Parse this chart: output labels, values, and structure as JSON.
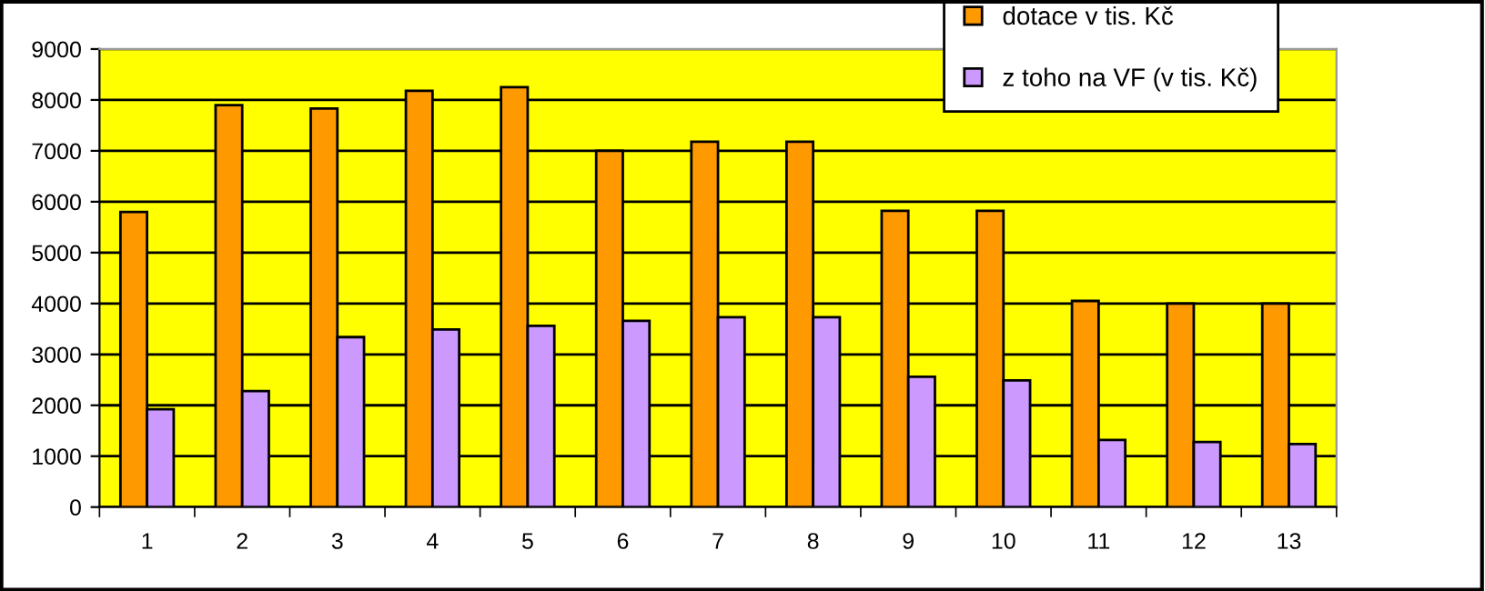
{
  "chart_data": {
    "type": "bar",
    "categories": [
      "1",
      "2",
      "3",
      "4",
      "5",
      "6",
      "7",
      "8",
      "9",
      "10",
      "11",
      "12",
      "13"
    ],
    "series": [
      {
        "name": "dotace v tis. Kč",
        "color": "#ff9900",
        "values": [
          5800,
          7900,
          7830,
          8180,
          8250,
          7000,
          7180,
          7180,
          5820,
          5820,
          4050,
          4000,
          4000
        ]
      },
      {
        "name": "z toho na VF (v tis. Kč)",
        "color": "#cc99ff",
        "values": [
          1920,
          2280,
          3340,
          3490,
          3560,
          3660,
          3730,
          3730,
          2560,
          2490,
          1320,
          1280,
          1240
        ]
      }
    ],
    "ylim": [
      0,
      9000
    ],
    "yticks": [
      0,
      1000,
      2000,
      3000,
      4000,
      5000,
      6000,
      7000,
      8000,
      9000
    ],
    "grid": "y",
    "legend": "top right"
  }
}
